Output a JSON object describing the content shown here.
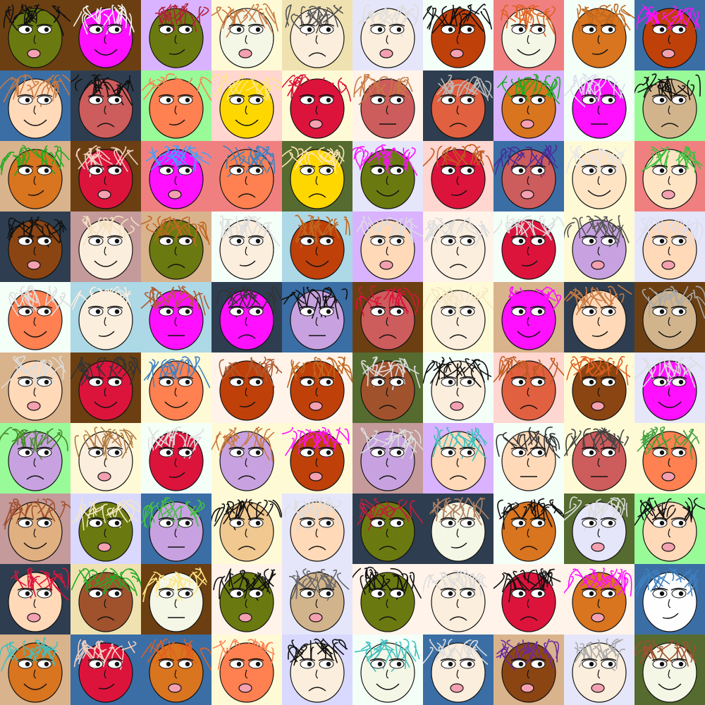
{
  "grid": {
    "rows": 10,
    "columns": 10,
    "tiles": [
      {
        "bg": "#6b3f12",
        "skin": "#6b7a10",
        "hair": "#111111",
        "mouth": "open"
      },
      {
        "bg": "#6b3f12",
        "skin": "#ff10ff",
        "hair": "#f2f2f2",
        "mouth": "smile"
      },
      {
        "bg": "#d9b3ff",
        "skin": "#6b7a10",
        "hair": "#b0203a",
        "mouth": "smirk"
      },
      {
        "bg": "#fffad6",
        "skin": "#f4f6e6",
        "hair": "#c87a42",
        "mouth": "open"
      },
      {
        "bg": "#f0e2b0",
        "skin": "#fbeedc",
        "hair": "#555555",
        "mouth": "frown"
      },
      {
        "bg": "#e6e6fa",
        "skin": "#fbeedc",
        "hair": "#dddddd",
        "mouth": "open"
      },
      {
        "bg": "#f4fff8",
        "skin": "#c0400a",
        "hair": "#111111",
        "mouth": "open"
      },
      {
        "bg": "#f08080",
        "skin": "#f4f6e6",
        "hair": "#e06020",
        "mouth": "smile"
      },
      {
        "bg": "#f4fff8",
        "skin": "#d9741f",
        "hair": "#c06820",
        "mouth": "smirk"
      },
      {
        "bg": "#3a6ea5",
        "skin": "#c0400a",
        "hair": "#ff10ff",
        "mouth": "open"
      },
      {
        "bg": "#3a6ea5",
        "skin": "#ffd9b8",
        "hair": "#c87a42",
        "mouth": "smile"
      },
      {
        "bg": "#2e3e50",
        "skin": "#cd5c5c",
        "hair": "#111111",
        "mouth": "frown"
      },
      {
        "bg": "#98fb98",
        "skin": "#ff8050",
        "hair": "#ff8050",
        "mouth": "smirk"
      },
      {
        "bg": "#ffd6d0",
        "skin": "#ffd700",
        "hair": "#ffe680",
        "mouth": "smile"
      },
      {
        "bg": "#fffad6",
        "skin": "#dc143c",
        "hair": "#dc143c",
        "mouth": "open"
      },
      {
        "bg": "#fff3ea",
        "skin": "#cd5c5c",
        "hair": "#c87a42",
        "mouth": "line"
      },
      {
        "bg": "#2e3e50",
        "skin": "#e06040",
        "hair": "#bbbbbb",
        "mouth": "frown"
      },
      {
        "bg": "#d9b3ff",
        "skin": "#d9741f",
        "hair": "#22aa22",
        "mouth": "open"
      },
      {
        "bg": "#f4fff8",
        "skin": "#ff10ff",
        "hair": "#ddddee",
        "mouth": "line"
      },
      {
        "bg": "#98fb98",
        "skin": "#d2b48c",
        "hair": "#111111",
        "mouth": "frown"
      },
      {
        "bg": "#d9b38c",
        "skin": "#d9741f",
        "hair": "#22aa22",
        "mouth": "smirk"
      },
      {
        "bg": "#6b3f12",
        "skin": "#dc143c",
        "hair": "#f4d0c0",
        "mouth": "open"
      },
      {
        "bg": "#f08080",
        "skin": "#ff10ff",
        "hair": "#40a0ff",
        "mouth": "open"
      },
      {
        "bg": "#f08080",
        "skin": "#ff8050",
        "hair": "#4080c0",
        "mouth": "frown"
      },
      {
        "bg": "#556b2f",
        "skin": "#ffd700",
        "hair": "#ffe6b0",
        "mouth": "frown"
      },
      {
        "bg": "#e6e6fa",
        "skin": "#6b7a10",
        "hair": "#ff10ff",
        "mouth": "smile"
      },
      {
        "bg": "#ffd6d0",
        "skin": "#dc143c",
        "hair": "#c05a20",
        "mouth": "smirk"
      },
      {
        "bg": "#3a6ea5",
        "skin": "#cd5c5c",
        "hair": "#4b2a9a",
        "mouth": "open"
      },
      {
        "bg": "#fffad6",
        "skin": "#ffe4c4",
        "hair": "#e8e8e8",
        "mouth": "smile"
      },
      {
        "bg": "#f08080",
        "skin": "#ffe4c4",
        "hair": "#40c040",
        "mouth": "open"
      },
      {
        "bg": "#2e3e50",
        "skin": "#8b4513",
        "hair": "#111111",
        "mouth": "open"
      },
      {
        "bg": "#c49a9a",
        "skin": "#fbeedc",
        "hair": "#f4e0c0",
        "mouth": "smile"
      },
      {
        "bg": "#d9b38c",
        "skin": "#6b7a10",
        "hair": "#c06820",
        "mouth": "frown"
      },
      {
        "bg": "#f4fff8",
        "skin": "#fbeedc",
        "hair": "#dddddd",
        "mouth": "smirk"
      },
      {
        "bg": "#add8e6",
        "skin": "#c0400a",
        "hair": "#c06820",
        "mouth": "smile"
      },
      {
        "bg": "#d9b3ff",
        "skin": "#ffd9b8",
        "hair": "#dddddd",
        "mouth": "open"
      },
      {
        "bg": "#fff3ea",
        "skin": "#fbeedc",
        "hair": "#dddddd",
        "mouth": "frown"
      },
      {
        "bg": "#f4fff8",
        "skin": "#dc143c",
        "hair": "#dddddd",
        "mouth": "smirk"
      },
      {
        "bg": "#fffad6",
        "skin": "#c8a2e0",
        "hair": "#555555",
        "mouth": "open"
      },
      {
        "bg": "#e6e6fa",
        "skin": "#ffd9b8",
        "hair": "#ddddee",
        "mouth": "open"
      },
      {
        "bg": "#f4fff8",
        "skin": "#ff8050",
        "hair": "#dddddd",
        "mouth": "smile"
      },
      {
        "bg": "#add8e6",
        "skin": "#fbeedc",
        "hair": "#fbeedc",
        "mouth": "smirk"
      },
      {
        "bg": "#add8e6",
        "skin": "#ff10ff",
        "hair": "#b05a30",
        "mouth": "line"
      },
      {
        "bg": "#2e3e50",
        "skin": "#ff10ff",
        "hair": "#333333",
        "mouth": "frown"
      },
      {
        "bg": "#3a6ea5",
        "skin": "#c8a2e0",
        "hair": "#111111",
        "mouth": "line"
      },
      {
        "bg": "#6b3f12",
        "skin": "#cd5c5c",
        "hair": "#dc143c",
        "mouth": "frown"
      },
      {
        "bg": "#fffad6",
        "skin": "#fbeedc",
        "hair": "#f4e6c0",
        "mouth": "frown"
      },
      {
        "bg": "#d9b38c",
        "skin": "#ff10ff",
        "hair": "#ff10ff",
        "mouth": "smile"
      },
      {
        "bg": "#2e3e50",
        "skin": "#ffd9b8",
        "hair": "#c87a42",
        "mouth": "smirk"
      },
      {
        "bg": "#6b3f12",
        "skin": "#d2b48c",
        "hair": "#aaaaaa",
        "mouth": "smile"
      },
      {
        "bg": "#d9b38c",
        "skin": "#ffd9b8",
        "hair": "#dddddd",
        "mouth": "open"
      },
      {
        "bg": "#6b3f12",
        "skin": "#dc143c",
        "hair": "#333333",
        "mouth": "smile"
      },
      {
        "bg": "#fffad6",
        "skin": "#ff8050",
        "hair": "#4080c0",
        "mouth": "smile"
      },
      {
        "bg": "#fff3ea",
        "skin": "#c0400a",
        "hair": "#b05a30",
        "mouth": "smirk"
      },
      {
        "bg": "#fff3ea",
        "skin": "#c0400a",
        "hair": "#c06820",
        "mouth": "open"
      },
      {
        "bg": "#556b2f",
        "skin": "#a0522d",
        "hair": "#dddddd",
        "mouth": "frown"
      },
      {
        "bg": "#f4fff8",
        "skin": "#fbeedc",
        "hair": "#111111",
        "mouth": "open"
      },
      {
        "bg": "#ffd6d0",
        "skin": "#e06040",
        "hair": "#c05a20",
        "mouth": "frown"
      },
      {
        "bg": "#fffad6",
        "skin": "#8b4513",
        "hair": "#e06020",
        "mouth": "open"
      },
      {
        "bg": "#e6e6fa",
        "skin": "#ff10ff",
        "hair": "#dddddd",
        "mouth": "smile"
      },
      {
        "bg": "#98fb98",
        "skin": "#c8a2e0",
        "hair": "#4a8a2a",
        "mouth": "frown"
      },
      {
        "bg": "#fffad6",
        "skin": "#fbeedc",
        "hair": "#b07a40",
        "mouth": "open"
      },
      {
        "bg": "#f4fff8",
        "skin": "#dc143c",
        "hair": "#dddddd",
        "mouth": "smirk"
      },
      {
        "bg": "#fffad6",
        "skin": "#c8a2e0",
        "hair": "#c87a42",
        "mouth": "frown"
      },
      {
        "bg": "#fffad6",
        "skin": "#c0400a",
        "hair": "#ff10ff",
        "mouth": "open"
      },
      {
        "bg": "#c49a9a",
        "skin": "#c8a2e0",
        "hair": "#dddddd",
        "mouth": "frown"
      },
      {
        "bg": "#d9b3ff",
        "skin": "#ffd9b8",
        "hair": "#40c0c0",
        "mouth": "frown"
      },
      {
        "bg": "#f4fff8",
        "skin": "#ffd9b8",
        "hair": "#333333",
        "mouth": "line"
      },
      {
        "bg": "#fffad6",
        "skin": "#cd5c5c",
        "hair": "#444444",
        "mouth": "line"
      },
      {
        "bg": "#fffad6",
        "skin": "#ff8050",
        "hair": "#40a040",
        "mouth": "open"
      },
      {
        "bg": "#c49a9a",
        "skin": "#e0b080",
        "hair": "#a05030",
        "mouth": "smile"
      },
      {
        "bg": "#d9d9ff",
        "skin": "#6b7a10",
        "hair": "#f4e6c0",
        "mouth": "open"
      },
      {
        "bg": "#3a6ea5",
        "skin": "#c8a2e0",
        "hair": "#40c040",
        "mouth": "line"
      },
      {
        "bg": "#fffad6",
        "skin": "#f0c890",
        "hair": "#111111",
        "mouth": "frown"
      },
      {
        "bg": "#e6e6fa",
        "skin": "#ffd9b8",
        "hair": "#dddddd",
        "mouth": "frown"
      },
      {
        "bg": "#2e3e50",
        "skin": "#6b7a10",
        "hair": "#c0203a",
        "mouth": "frown"
      },
      {
        "bg": "#2e3e50",
        "skin": "#f4f6e6",
        "hair": "#b08060",
        "mouth": "smirk"
      },
      {
        "bg": "#f4fff8",
        "skin": "#d9741f",
        "hair": "#111111",
        "mouth": "frown"
      },
      {
        "bg": "#556b2f",
        "skin": "#e6e6fa",
        "hair": "#dddddd",
        "mouth": "open"
      },
      {
        "bg": "#98fb98",
        "skin": "#ffd9b8",
        "hair": "#111111",
        "mouth": "open"
      },
      {
        "bg": "#2e3e50",
        "skin": "#ffd9b8",
        "hair": "#dc143c",
        "mouth": "open"
      },
      {
        "bg": "#f0e2b0",
        "skin": "#a0522d",
        "hair": "#22aa22",
        "mouth": "frown"
      },
      {
        "bg": "#6b3f12",
        "skin": "#f4f6e6",
        "hair": "#ffe680",
        "mouth": "line"
      },
      {
        "bg": "#fff3ea",
        "skin": "#6b7a10",
        "hair": "#111111",
        "mouth": "open"
      },
      {
        "bg": "#e6e6fa",
        "skin": "#d2b48c",
        "hair": "#666666",
        "mouth": "open"
      },
      {
        "bg": "#fff3ea",
        "skin": "#6b7a10",
        "hair": "#111111",
        "mouth": "frown"
      },
      {
        "bg": "#fff3ea",
        "skin": "#fbeedc",
        "hair": "#dddddd",
        "mouth": "frown"
      },
      {
        "bg": "#fff3ea",
        "skin": "#dc143c",
        "hair": "#111111",
        "mouth": "frown"
      },
      {
        "bg": "#fff3ea",
        "skin": "#d9741f",
        "hair": "#ff10ff",
        "mouth": "open"
      },
      {
        "bg": "#3a6ea5",
        "skin": "#fefefe",
        "hair": "#4080c0",
        "mouth": "smirk"
      },
      {
        "bg": "#d9b38c",
        "skin": "#d9741f",
        "hair": "#40c0c0",
        "mouth": "smile"
      },
      {
        "bg": "#3a6ea5",
        "skin": "#dc143c",
        "hair": "#f4d0c0",
        "mouth": "smirk"
      },
      {
        "bg": "#3a6ea5",
        "skin": "#d9741f",
        "hair": "#e06020",
        "mouth": "open"
      },
      {
        "bg": "#fffad6",
        "skin": "#ff8050",
        "hair": "#ff8050",
        "mouth": "open"
      },
      {
        "bg": "#d9d9ff",
        "skin": "#fbeedc",
        "hair": "#111111",
        "mouth": "frown"
      },
      {
        "bg": "#f4fff8",
        "skin": "#f4f6e6",
        "hair": "#40c0c0",
        "mouth": "smile"
      },
      {
        "bg": "#3a6ea5",
        "skin": "#fbeedc",
        "hair": "#dddddd",
        "mouth": "open"
      },
      {
        "bg": "#d9b38c",
        "skin": "#8b4513",
        "hair": "#6a2aa0",
        "mouth": "open"
      },
      {
        "bg": "#e6e6fa",
        "skin": "#fbeedc",
        "hair": "#aaaaaa",
        "mouth": "open"
      },
      {
        "bg": "#556b2f",
        "skin": "#f4f6e6",
        "hair": "#a05030",
        "mouth": "smile"
      }
    ]
  }
}
